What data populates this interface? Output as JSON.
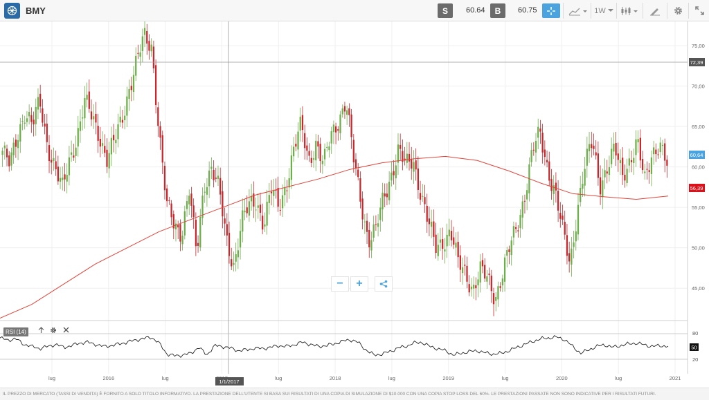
{
  "header": {
    "symbol": "BMY",
    "sell_label": "S",
    "sell_price": "60.64",
    "buy_label": "B",
    "buy_price": "60.75",
    "timeframe": "1W",
    "icons": [
      "company-logo-icon",
      "crosshair-icon",
      "chart-type-icon",
      "candlestick-icon",
      "draw-tool-icon",
      "gear-icon",
      "expand-icon"
    ]
  },
  "chart_data": {
    "type": "candlestick",
    "title": "",
    "y_ticks": [
      "75,00",
      "70,00",
      "65,00",
      "60,00",
      "55,00",
      "50,00",
      "45,00"
    ],
    "ylim": [
      41,
      78
    ],
    "x_ticks": [
      "lug",
      "2016",
      "lug",
      "2017",
      "lug",
      "2018",
      "lug",
      "2019",
      "lug",
      "2020",
      "lug",
      "2021"
    ],
    "crosshair": {
      "price_label": "72,39",
      "date_label": "1/1/2017"
    },
    "last_price_label": "60,64",
    "sma_label": "56,39",
    "colors": {
      "up": "#6cae4a",
      "down": "#c8262b",
      "sma": "#e0443a",
      "last_price": "#4aa3df",
      "sma_tag": "#d9131b"
    },
    "close_path": [
      62,
      60,
      64,
      67,
      65,
      68,
      63,
      60,
      57,
      61,
      64,
      68,
      66,
      64,
      61,
      63,
      66,
      70,
      73,
      76,
      75,
      64,
      55,
      53,
      52,
      57,
      49,
      58,
      60,
      57,
      51,
      48,
      53,
      55,
      56,
      53,
      57,
      55,
      58,
      62,
      65,
      61,
      63,
      60,
      64,
      66,
      68,
      61,
      56,
      51,
      52,
      56,
      59,
      62,
      60,
      61,
      57,
      53,
      50,
      51,
      52,
      48,
      47,
      45,
      47,
      46,
      44,
      47,
      50,
      53,
      57,
      62,
      64,
      60,
      57,
      52,
      48,
      55,
      60,
      63,
      58,
      60,
      62,
      59,
      61,
      63,
      58,
      62,
      63,
      60
    ],
    "sma_path": [
      41.3,
      43,
      45.5,
      48,
      50,
      52,
      53.5,
      55,
      56.5,
      57.5,
      58.5,
      59.7,
      60.5,
      61,
      61.3,
      60.8,
      59.5,
      58,
      56.7,
      56.3,
      56,
      56.4
    ]
  },
  "rsi": {
    "label": "RSI (14)",
    "value": "50",
    "level_upper": "80",
    "level_lower": "20",
    "path": [
      70,
      65,
      68,
      55,
      50,
      45,
      50,
      55,
      48,
      52,
      58,
      60,
      55,
      50,
      52,
      56,
      60,
      65,
      68,
      72,
      58,
      32,
      28,
      30,
      34,
      48,
      30,
      52,
      50,
      46,
      40,
      42,
      46,
      45,
      48,
      52,
      50,
      54,
      60,
      55,
      50,
      52,
      56,
      62,
      66,
      60,
      42,
      30,
      32,
      38,
      46,
      50,
      58,
      60,
      50,
      45,
      40,
      30,
      34,
      38,
      40,
      35,
      32,
      34,
      40,
      48,
      55,
      62,
      68,
      70,
      72,
      66,
      50,
      34,
      42,
      50,
      54,
      48,
      52,
      56,
      58,
      54,
      50,
      52,
      50
    ]
  },
  "zoom": {
    "minus": "−",
    "plus": "+"
  },
  "disclaimer": "IL PREZZO DI MERCATO (TASSI DI VENDITA) È FORNITO A SOLO TITOLO INFORMATIVO. LA PRESTAZIONE DELL'UTENTE SI BASA SUI RISULTATI DI UNA COPIA DI SIMULAZIONE DI $10.000 CON UNA COPIA STOP LOSS DEL 60%. LE PRESTAZIONI PASSATE NON SONO INDICATIVE PER I RISULTATI FUTURI."
}
